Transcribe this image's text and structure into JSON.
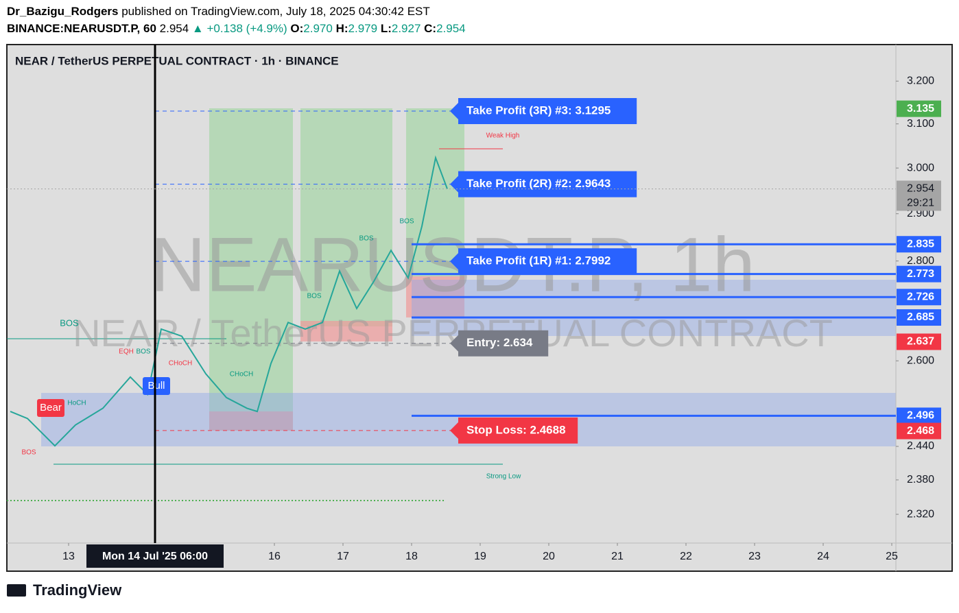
{
  "header": {
    "author": "Dr_Bazigu_Rodgers",
    "published": "published on TradingView.com, July 18, 2025 04:30:42 EST",
    "symbol": "BINANCE:NEARUSDT.P, 60",
    "last": "2.954",
    "change": "▲ +0.138 (+4.9%)",
    "ohlc": [
      {
        "key": "O:",
        "value": "2.970"
      },
      {
        "key": "H:",
        "value": "2.979"
      },
      {
        "key": "L:",
        "value": "2.927"
      },
      {
        "key": "C:",
        "value": "2.954"
      }
    ]
  },
  "chart_data": {
    "type": "line",
    "title": "NEAR / TetherUS PERPETUAL CONTRACT · 1h · BINANCE",
    "watermark": "NEARUSDT.P, 1h",
    "watermark_sub": "NEAR / TetherUS PERPETUAL CONTRACT",
    "color": "#26a69a",
    "log_scale": true,
    "x": [
      12.15,
      12.4,
      12.8,
      13.1,
      13.5,
      13.9,
      14.15,
      14.35,
      14.65,
      15.0,
      15.3,
      15.6,
      15.75,
      15.95,
      16.2,
      16.45,
      16.7,
      16.95,
      17.2,
      17.45,
      17.7,
      17.95,
      18.15,
      18.35,
      18.52
    ],
    "values": [
      2.504,
      2.491,
      2.441,
      2.479,
      2.51,
      2.569,
      2.536,
      2.662,
      2.648,
      2.575,
      2.53,
      2.51,
      2.504,
      2.595,
      2.675,
      2.662,
      2.675,
      2.779,
      2.703,
      2.758,
      2.822,
      2.765,
      2.873,
      3.023,
      2.954
    ],
    "xlim": [
      12.1,
      25.06
    ],
    "xticks": [
      13,
      16,
      17,
      18,
      19,
      20,
      21,
      22,
      23,
      24,
      25
    ],
    "ylim": [
      2.271,
      3.288
    ],
    "yticks": [
      {
        "value": 3.2,
        "label": "3.200"
      },
      {
        "value": 3.1,
        "label": "3.100"
      },
      {
        "value": 3.0,
        "label": "3.000"
      },
      {
        "value": 2.9,
        "label": "2.900"
      },
      {
        "value": 2.8,
        "label": "2.800"
      },
      {
        "value": 2.6,
        "label": "2.600"
      },
      {
        "value": 2.44,
        "label": "2.440"
      },
      {
        "value": 2.38,
        "label": "2.380"
      },
      {
        "value": 2.32,
        "label": "2.320"
      }
    ],
    "crosshair": {
      "x": 14.26,
      "label": "Mon 14 Jul '25   06:00"
    },
    "levels": [
      {
        "value": 3.135,
        "color": "#4caf50",
        "style": "none"
      },
      {
        "value": 2.954,
        "color": "#a5a5a5",
        "style": "dotted",
        "countdown": "29:21"
      },
      {
        "value": 2.835,
        "color": "#2962ff",
        "style": "solid"
      },
      {
        "value": 2.773,
        "color": "#2962ff",
        "style": "solid"
      },
      {
        "value": 2.726,
        "color": "#2962ff",
        "style": "solid"
      },
      {
        "value": 2.685,
        "color": "#2962ff",
        "style": "solid"
      },
      {
        "value": 2.637,
        "color": "#f23645",
        "style": "none"
      },
      {
        "value": 2.496,
        "color": "#2962ff",
        "style": "solid"
      },
      {
        "value": 2.468,
        "color": "#f23645",
        "style": "none"
      }
    ],
    "trade_labels": [
      {
        "text": "Take Profit (3R) #3: 3.1295",
        "value": 3.1295,
        "color": "#2962ff"
      },
      {
        "text": "Take Profit (2R) #2: 2.9643",
        "value": 2.9643,
        "color": "#2962ff"
      },
      {
        "text": "Take Profit (1R) #1: 2.7992",
        "value": 2.7992,
        "color": "#2962ff"
      },
      {
        "text": "Entry: 2.634",
        "value": 2.634,
        "color": "#787b86"
      },
      {
        "text": "Stop Loss: 2.4688",
        "value": 2.4688,
        "color": "#f23645"
      }
    ],
    "markers": [
      {
        "text": "Weak High",
        "color": "#f23645"
      },
      {
        "text": "Strong Low",
        "color": "#089981"
      },
      {
        "text": "BOS",
        "color": "#089981"
      },
      {
        "text": "EQH",
        "color": "#f23645"
      },
      {
        "text": "BOS",
        "color": "#089981"
      },
      {
        "text": "CHoCH",
        "color": "#f23645"
      },
      {
        "text": "CHoCH",
        "color": "#089981"
      },
      {
        "text": "BOS",
        "color": "#089981"
      },
      {
        "text": "BOS",
        "color": "#089981"
      },
      {
        "text": "BOS",
        "color": "#089981"
      },
      {
        "text": "BOS",
        "color": "#f23645"
      },
      {
        "text": "HoCH",
        "color": "#089981"
      }
    ],
    "tags": [
      {
        "text": "Bull",
        "color": "#2962ff"
      },
      {
        "text": "Bear",
        "color": "#f23645"
      }
    ]
  },
  "footer": {
    "logo": "TradingView"
  }
}
